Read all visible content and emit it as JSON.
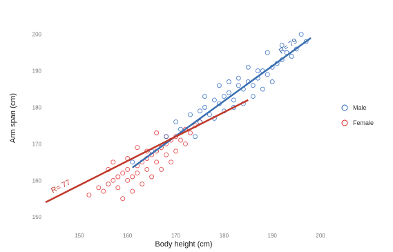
{
  "chart_data": {
    "type": "scatter",
    "title": "",
    "xlabel": "Body height (cm)",
    "ylabel": "Arm span (cm)",
    "xlim": [
      143,
      204
    ],
    "ylim": [
      147,
      206
    ],
    "xticks": [
      150,
      160,
      170,
      180,
      190,
      200
    ],
    "yticks": [
      150,
      160,
      170,
      180,
      190,
      200
    ],
    "grid": false,
    "legend_position": "right",
    "series": [
      {
        "name": "Male",
        "color": "#1f5fbf",
        "line_color": "#3a6fb0",
        "correlation_label": "R= 79",
        "fit_line": {
          "x": [
            161,
            198
          ],
          "y": [
            163.5,
            199
          ]
        },
        "points_x": [
          161,
          165,
          168,
          171,
          173,
          175,
          176,
          177,
          178,
          179,
          180,
          181,
          182,
          183,
          184,
          185,
          186,
          187,
          188,
          189,
          190,
          191,
          192,
          193,
          195,
          197,
          175,
          178,
          180,
          182,
          184,
          186,
          188,
          179,
          183,
          187,
          190,
          194,
          176,
          181,
          185,
          189,
          192,
          196,
          174,
          170
        ],
        "points_y": [
          165,
          168,
          172,
          174,
          178,
          179,
          180,
          178,
          182,
          181,
          183,
          184,
          182,
          186,
          185,
          187,
          186,
          188,
          190,
          189,
          191,
          192,
          193,
          195,
          196,
          198,
          176,
          177,
          179,
          180,
          181,
          183,
          185,
          186,
          188,
          190,
          187,
          194,
          183,
          187,
          191,
          195,
          197,
          200,
          172,
          176
        ]
      },
      {
        "name": "Female",
        "color": "#e02020",
        "line_color": "#c0392b",
        "correlation_label": "R= 77",
        "fit_line": {
          "x": [
            143,
            185
          ],
          "y": [
            154,
            182
          ]
        },
        "points_x": [
          152,
          154,
          155,
          156,
          157,
          158,
          158,
          159,
          160,
          160,
          161,
          162,
          162,
          163,
          164,
          164,
          165,
          166,
          166,
          167,
          168,
          168,
          169,
          170,
          171,
          172,
          173,
          174,
          175,
          159,
          161,
          163,
          165,
          167,
          169,
          156,
          160,
          164,
          168,
          170,
          172,
          157,
          162,
          166
        ],
        "points_y": [
          156,
          158,
          157,
          159,
          160,
          161,
          158,
          162,
          160,
          163,
          161,
          164,
          162,
          165,
          163,
          166,
          167,
          165,
          168,
          169,
          170,
          167,
          171,
          172,
          171,
          174,
          173,
          175,
          176,
          155,
          157,
          159,
          161,
          163,
          165,
          163,
          166,
          168,
          172,
          168,
          170,
          165,
          169,
          173
        ]
      }
    ]
  }
}
